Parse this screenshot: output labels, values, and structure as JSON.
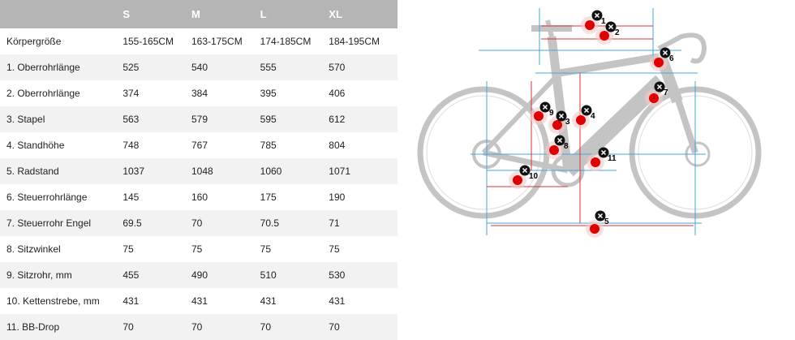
{
  "table": {
    "header": [
      "S",
      "M",
      "L",
      "XL"
    ],
    "rows": [
      [
        "Körpergröße",
        "155-165CM",
        "163-175CM",
        "174-185CM",
        "184-195CM"
      ],
      [
        "1. Oberrohrlänge",
        "525",
        "540",
        "555",
        "570"
      ],
      [
        "2. Oberrohrlänge",
        "374",
        "384",
        "395",
        "406"
      ],
      [
        "3. Stapel",
        "563",
        "579",
        "595",
        "612"
      ],
      [
        "4. Standhöhe",
        "748",
        "767",
        "785",
        "804"
      ],
      [
        "5. Radstand",
        "1037",
        "1048",
        "1060",
        "1071"
      ],
      [
        "6. Steuerrohrlänge",
        "145",
        "160",
        "175",
        "190"
      ],
      [
        "7. Steuerrohr Engel",
        "69.5",
        "70",
        "70.5",
        "71"
      ],
      [
        "8. Sitzwinkel",
        "75",
        "75",
        "75",
        "75"
      ],
      [
        "9. Sitzrohr, mm",
        "455",
        "490",
        "510",
        "530"
      ],
      [
        "10. Kettenstrebe, mm",
        "431",
        "431",
        "431",
        "431"
      ],
      [
        "11. BB-Drop",
        "70",
        "70",
        "70",
        "70"
      ]
    ]
  },
  "diagram": {
    "markers": [
      "1",
      "2",
      "3",
      "4",
      "5",
      "6",
      "7",
      "8",
      "9",
      "10",
      "11"
    ]
  }
}
